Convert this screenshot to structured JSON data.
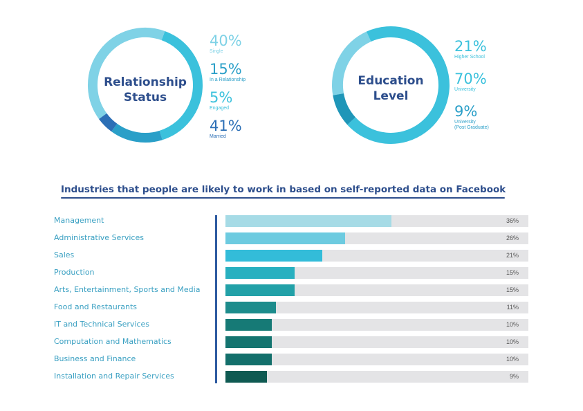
{
  "colors": {
    "title": "#2d4e8c",
    "axis": "#2d5aa0",
    "track": "#e4e4e6"
  },
  "chart_data": [
    {
      "type": "pie",
      "title": "Relationship Status",
      "slices": [
        {
          "label": "Single",
          "value": 40,
          "display": "40%",
          "color": "#3bc1dc"
        },
        {
          "label": "In a Relationship",
          "value": 15,
          "display": "15%",
          "color": "#2a9fc8"
        },
        {
          "label": "Engaged",
          "value": 5,
          "display": "5%",
          "color": "#2c6fb6"
        },
        {
          "label": "Married",
          "value": 41,
          "display": "41%",
          "color": "#7fd2e6"
        }
      ],
      "legend_colors": [
        "#7fd2e6",
        "#2a9fc8",
        "#3bc1dc",
        "#2c6fb6"
      ]
    },
    {
      "type": "pie",
      "title": "Education Level",
      "slices": [
        {
          "label": "Higher School",
          "value": 21,
          "display": "21%",
          "color": "#7fd2e6"
        },
        {
          "label": "University",
          "value": 70,
          "display": "70%",
          "color": "#3bc1dc"
        },
        {
          "label": "University\n(Post Graduate)",
          "value": 9,
          "display": "9%",
          "color": "#1f96b8"
        }
      ],
      "legend_colors": [
        "#3bc1dc",
        "#3bc1dc",
        "#2a9fc8"
      ]
    },
    {
      "type": "bar",
      "orientation": "horizontal",
      "title": "Industries that people are likely to work in based on self-reported data on Facebook",
      "xlim": [
        0,
        100
      ],
      "categories": [
        "Management",
        "Administrative Services",
        "Sales",
        "Production",
        "Arts, Entertainment, Sports and Media",
        "Food and Restaurants",
        "IT and Technical Services",
        "Computation and Mathematics",
        "Business and Finance",
        "Installation and Repair Services"
      ],
      "values": [
        36,
        26,
        21,
        15,
        15,
        11,
        10,
        10,
        10,
        9
      ],
      "value_labels": [
        "36%",
        "26%",
        "21%",
        "15%",
        "15%",
        "11%",
        "10%",
        "10%",
        "10%",
        "9%"
      ],
      "colors": [
        "#a6dbe6",
        "#6dcbe0",
        "#33bcd9",
        "#28b0c0",
        "#22a1a8",
        "#1d8c8c",
        "#167a76",
        "#147470",
        "#136f6b",
        "#0f5a52"
      ]
    }
  ]
}
